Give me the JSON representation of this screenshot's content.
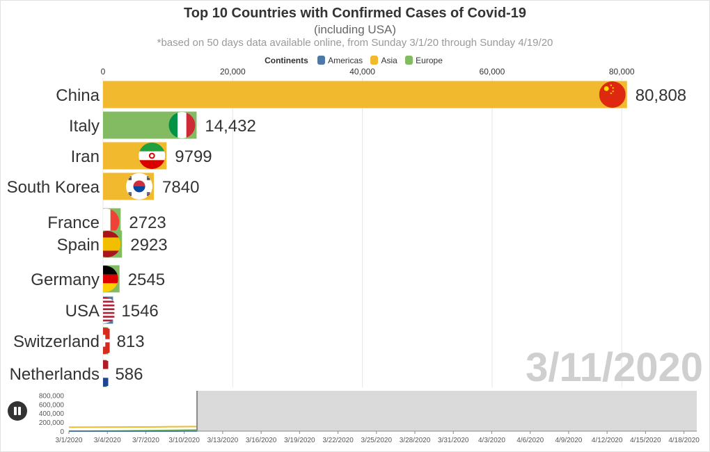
{
  "title": "Top 10 Countries with Confirmed Cases of Covid-19",
  "subtitle": "(including USA)",
  "note": "*based on 50 days data available online, from Sunday 3/1/20 through Sunday 4/19/20",
  "legend": {
    "title": "Continents",
    "items": [
      {
        "label": "Americas",
        "color": "#4e79a7"
      },
      {
        "label": "Asia",
        "color": "#f0b92e"
      },
      {
        "label": "Europe",
        "color": "#82bb62"
      }
    ]
  },
  "date_label": "3/11/2020",
  "controls": {
    "play_icon": "pause-icon"
  },
  "chart_data": {
    "type": "bar",
    "orientation": "horizontal",
    "x_ticks": [
      "0",
      "20,000",
      "40,000",
      "60,000",
      "80,000"
    ],
    "xlim": [
      0,
      92000
    ],
    "grid": true,
    "bars": [
      {
        "country": "China",
        "value": 80808,
        "value_label": "80,808",
        "continent": "Asia",
        "flag": "china-flag-icon"
      },
      {
        "country": "Italy",
        "value": 14432,
        "value_label": "14,432",
        "continent": "Europe",
        "flag": "italy-flag-icon"
      },
      {
        "country": "Iran",
        "value": 9799,
        "value_label": "9799",
        "continent": "Asia",
        "flag": "iran-flag-icon"
      },
      {
        "country": "South Korea",
        "value": 7840,
        "value_label": "7840",
        "continent": "Asia",
        "flag": "south-korea-flag-icon"
      },
      {
        "country": "France",
        "value": 2723,
        "value_label": "2723",
        "continent": "Europe",
        "flag": "france-flag-icon"
      },
      {
        "country": "Spain",
        "value": 2923,
        "value_label": "2923",
        "continent": "Europe",
        "flag": "spain-flag-icon"
      },
      {
        "country": "Germany",
        "value": 2545,
        "value_label": "2545",
        "continent": "Europe",
        "flag": "germany-flag-icon"
      },
      {
        "country": "USA",
        "value": 1546,
        "value_label": "1546",
        "continent": "Americas",
        "flag": "usa-flag-icon"
      },
      {
        "country": "Switzerland",
        "value": 813,
        "value_label": "813",
        "continent": "Europe",
        "flag": "switzerland-flag-icon"
      },
      {
        "country": "Netherlands",
        "value": 586,
        "value_label": "586",
        "continent": "Europe",
        "flag": "netherlands-flag-icon"
      }
    ],
    "timeline": {
      "y_ticks": [
        "800,000",
        "600,000",
        "400,000",
        "200,000",
        "0"
      ],
      "ylim": [
        0,
        900000
      ],
      "x_ticks": [
        "3/1/2020",
        "3/4/2020",
        "3/7/2020",
        "3/10/2020",
        "3/13/2020",
        "3/16/2020",
        "3/19/2020",
        "3/22/2020",
        "3/25/2020",
        "3/28/2020",
        "3/31/2020",
        "4/3/2020",
        "4/6/2020",
        "4/9/2020",
        "4/12/2020",
        "4/15/2020",
        "4/18/2020"
      ],
      "days_total": 50,
      "current_day_index": 10,
      "series": [
        {
          "continent": "Asia",
          "values": [
            88000,
            89000,
            90000,
            91000,
            92000,
            93000,
            94000,
            96000,
            98000,
            100000,
            102000
          ]
        },
        {
          "continent": "Europe",
          "values": [
            1500,
            2200,
            3200,
            4500,
            6500,
            9000,
            12000,
            15000,
            19000,
            23000,
            28000
          ]
        },
        {
          "continent": "Americas",
          "values": [
            70,
            100,
            120,
            200,
            250,
            350,
            450,
            600,
            800,
            1100,
            1600
          ]
        }
      ]
    }
  }
}
